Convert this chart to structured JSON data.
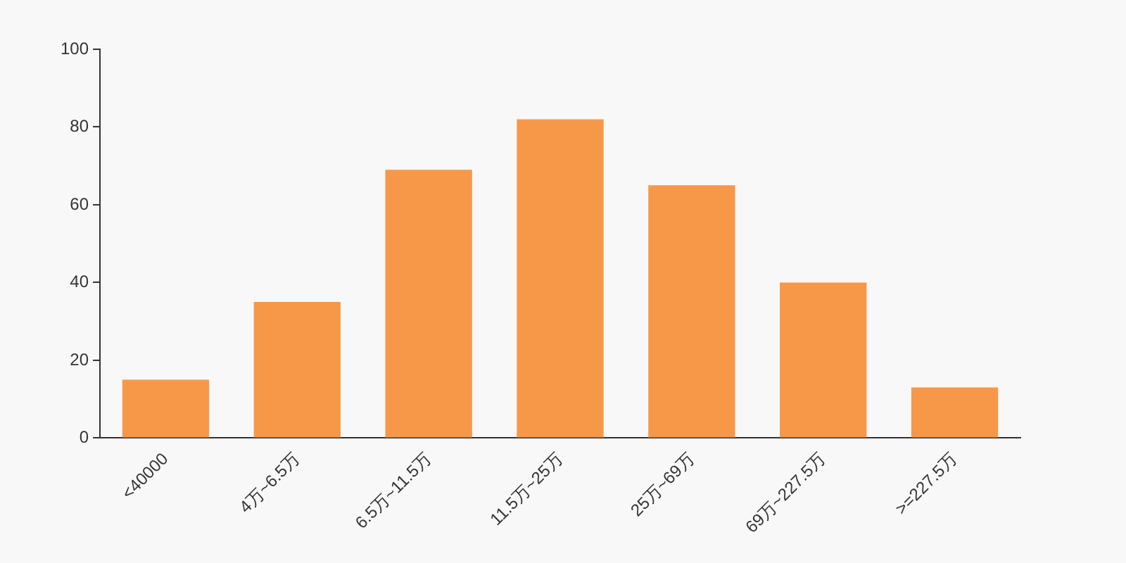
{
  "chart_data": {
    "type": "bar",
    "categories": [
      "<40000",
      "4万~6.5万",
      "6.5万~11.5万",
      "11.5万~25万",
      "25万~69万",
      "69万~227.5万",
      ">=227.5万"
    ],
    "values": [
      15,
      35,
      69,
      82,
      65,
      40,
      13
    ],
    "color": "#f79849",
    "ylim": [
      0,
      100
    ],
    "yticks": [
      0,
      20,
      40,
      60,
      80,
      100
    ],
    "grid": false
  }
}
